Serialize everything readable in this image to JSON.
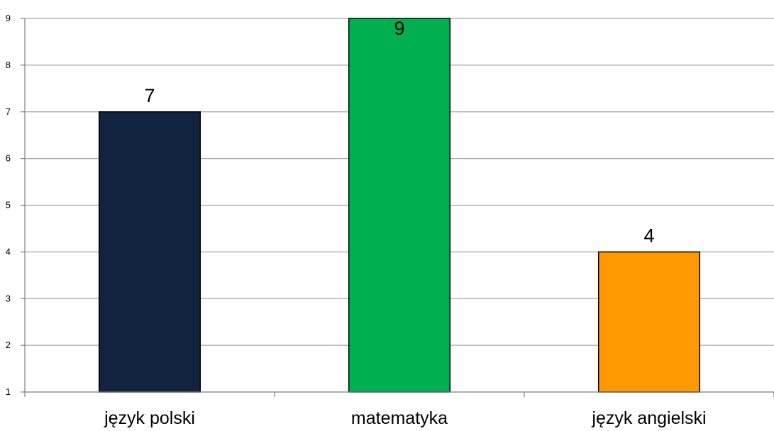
{
  "chart_data": {
    "type": "bar",
    "categories": [
      "język polski",
      "matematyka",
      "język angielski"
    ],
    "values": [
      7,
      9,
      4
    ],
    "colors": [
      "#12233f",
      "#00b050",
      "#ff9900"
    ],
    "ylim": [
      1,
      9
    ],
    "yticks": [
      "1",
      "2",
      "3",
      "4",
      "5",
      "6",
      "7",
      "8",
      "9"
    ],
    "grid": true,
    "legend": "none",
    "title": "",
    "xlabel": "",
    "ylabel": ""
  }
}
